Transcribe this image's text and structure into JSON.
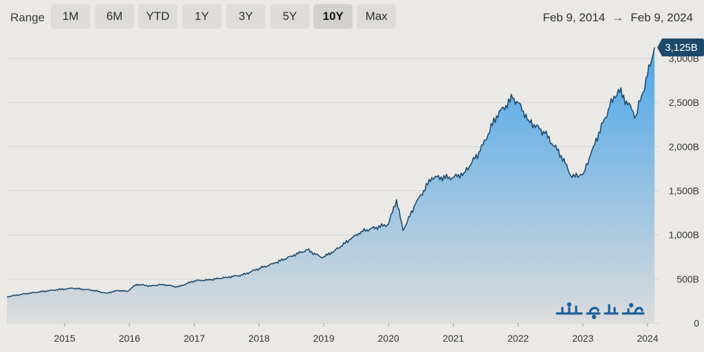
{
  "toolbar": {
    "range_label": "Range",
    "buttons": [
      {
        "label": "1M",
        "active": false
      },
      {
        "label": "6M",
        "active": false
      },
      {
        "label": "YTD",
        "active": false
      },
      {
        "label": "1Y",
        "active": false
      },
      {
        "label": "3Y",
        "active": false
      },
      {
        "label": "5Y",
        "active": false
      },
      {
        "label": "10Y",
        "active": true
      },
      {
        "label": "Max",
        "active": false
      }
    ],
    "date_from": "Feb 9, 2014",
    "date_arrow": "→",
    "date_to": "Feb 9, 2024"
  },
  "colors": {
    "line": "#1d4a6b",
    "area_top": "#4aa6ea",
    "area_bottom": "#dcdcdc",
    "badge": "#1d4a6b",
    "grid": "#d2d0cc",
    "watermark": "#1b5f9e"
  },
  "watermark_icon": "persian-logo-watermark",
  "chart_data": {
    "type": "area",
    "title": "",
    "xlabel": "",
    "ylabel": "",
    "x_range": [
      "2014-02-09",
      "2024-02-09"
    ],
    "ylim": [
      0,
      3000
    ],
    "y_ticks": [
      0,
      500,
      1000,
      1500,
      2000,
      2500,
      3000
    ],
    "y_tick_labels": [
      "0",
      "500B",
      "1,000B",
      "1,500B",
      "2,000B",
      "2,500B",
      "3,000B"
    ],
    "x_ticks": [
      "2015-01-01",
      "2016-01-01",
      "2017-01-01",
      "2018-01-01",
      "2019-01-01",
      "2020-01-01",
      "2021-01-01",
      "2022-01-01",
      "2023-01-01",
      "2024-01-01"
    ],
    "x_tick_labels": [
      "2015",
      "2016",
      "2017",
      "2018",
      "2019",
      "2020",
      "2021",
      "2022",
      "2023",
      "2024"
    ],
    "y_axis_side": "right",
    "grid": "horizontal",
    "last_value_label": "3,125B",
    "series": [
      {
        "unit": "B",
        "points": [
          [
            "2014-02-09",
            300
          ],
          [
            "2014-06-01",
            335
          ],
          [
            "2014-11-01",
            375
          ],
          [
            "2015-02-15",
            395
          ],
          [
            "2015-06-01",
            375
          ],
          [
            "2015-08-24",
            340
          ],
          [
            "2015-11-01",
            370
          ],
          [
            "2015-12-20",
            360
          ],
          [
            "2016-02-10",
            440
          ],
          [
            "2016-05-01",
            420
          ],
          [
            "2016-07-01",
            440
          ],
          [
            "2016-10-01",
            410
          ],
          [
            "2017-01-01",
            480
          ],
          [
            "2017-04-01",
            490
          ],
          [
            "2017-07-01",
            520
          ],
          [
            "2017-10-01",
            545
          ],
          [
            "2018-01-01",
            620
          ],
          [
            "2018-04-01",
            680
          ],
          [
            "2018-07-01",
            760
          ],
          [
            "2018-10-01",
            830
          ],
          [
            "2018-12-24",
            740
          ],
          [
            "2019-03-01",
            820
          ],
          [
            "2019-06-01",
            950
          ],
          [
            "2019-08-01",
            1040
          ],
          [
            "2019-12-31",
            1120
          ],
          [
            "2020-02-15",
            1400
          ],
          [
            "2020-03-23",
            1050
          ],
          [
            "2020-06-01",
            1350
          ],
          [
            "2020-09-01",
            1650
          ],
          [
            "2020-12-31",
            1650
          ],
          [
            "2021-03-01",
            1700
          ],
          [
            "2021-06-01",
            1950
          ],
          [
            "2021-09-01",
            2350
          ],
          [
            "2021-12-01",
            2550
          ],
          [
            "2022-01-01",
            2500
          ],
          [
            "2022-03-01",
            2300
          ],
          [
            "2022-06-01",
            2150
          ],
          [
            "2022-09-01",
            1900
          ],
          [
            "2022-11-01",
            1650
          ],
          [
            "2023-01-05",
            1700
          ],
          [
            "2023-03-01",
            2000
          ],
          [
            "2023-06-01",
            2450
          ],
          [
            "2023-07-20",
            2650
          ],
          [
            "2023-10-27",
            2350
          ],
          [
            "2023-12-31",
            2800
          ],
          [
            "2024-02-09",
            3125
          ]
        ]
      }
    ]
  }
}
